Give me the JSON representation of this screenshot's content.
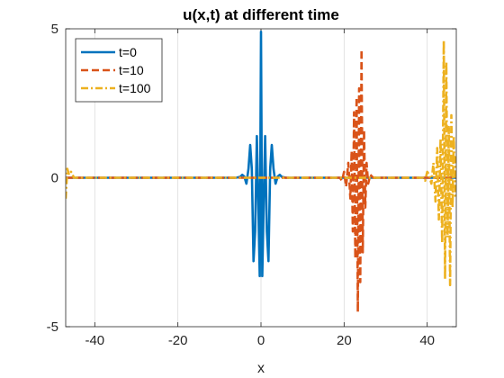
{
  "chart_data": {
    "type": "line",
    "title": "u(x,t) at different time",
    "xlabel": "x",
    "ylabel": "",
    "xlim": [
      -47,
      47
    ],
    "ylim": [
      -5,
      5
    ],
    "xticks": [
      -40,
      -20,
      0,
      20,
      40
    ],
    "xtick_labels": [
      "-40",
      "-20",
      "0",
      "20",
      "40"
    ],
    "yticks": [
      -5,
      0,
      5
    ],
    "ytick_labels": [
      "-5",
      "0",
      "5"
    ],
    "grid": "vertical-x",
    "legend_position": "top-left",
    "series": [
      {
        "name": "t=0",
        "color": "#0072BD",
        "style": "solid",
        "points": [
          [
            -47,
            0
          ],
          [
            -6,
            0
          ],
          [
            -5,
            0.03
          ],
          [
            -4.5,
            0.1
          ],
          [
            -4,
            0.04
          ],
          [
            -3.5,
            -0.2
          ],
          [
            -3,
            0.3
          ],
          [
            -2.6,
            1.1
          ],
          [
            -2.2,
            0.3
          ],
          [
            -1.8,
            -2.8
          ],
          [
            -1.4,
            -1.8
          ],
          [
            -1.0,
            1.4
          ],
          [
            -0.6,
            -1.2
          ],
          [
            -0.3,
            -3.3
          ],
          [
            0,
            4.9
          ],
          [
            0.3,
            -3.3
          ],
          [
            0.6,
            -1.2
          ],
          [
            1.0,
            1.4
          ],
          [
            1.4,
            -1.8
          ],
          [
            1.8,
            -2.8
          ],
          [
            2.2,
            0.3
          ],
          [
            2.6,
            1.1
          ],
          [
            3,
            0.3
          ],
          [
            3.5,
            -0.2
          ],
          [
            4,
            0.04
          ],
          [
            4.5,
            0.1
          ],
          [
            5,
            0.03
          ],
          [
            6,
            0
          ],
          [
            47,
            0
          ]
        ]
      },
      {
        "name": "t=10",
        "color": "#D95319",
        "style": "dashed",
        "points": [
          [
            -47,
            0
          ],
          [
            19,
            0
          ],
          [
            19.5,
            -0.1
          ],
          [
            20,
            0.2
          ],
          [
            20.5,
            -0.3
          ],
          [
            21,
            0.5
          ],
          [
            21.5,
            -0.7
          ],
          [
            21.8,
            0.9
          ],
          [
            22.1,
            -1.8
          ],
          [
            22.4,
            2.2
          ],
          [
            22.7,
            -2.7
          ],
          [
            23.0,
            2.7
          ],
          [
            23.3,
            -4.5
          ],
          [
            23.6,
            3.0
          ],
          [
            23.9,
            -3.5
          ],
          [
            24.2,
            4.3
          ],
          [
            24.5,
            -2.5
          ],
          [
            24.8,
            1.6
          ],
          [
            25.1,
            -1.0
          ],
          [
            25.4,
            0.5
          ],
          [
            25.8,
            -0.2
          ],
          [
            26.3,
            0.1
          ],
          [
            27,
            0
          ],
          [
            47,
            0
          ]
        ]
      },
      {
        "name": "t=100",
        "color": "#EDB120",
        "style": "dashdot",
        "points": [
          [
            -47,
            -0.7
          ],
          [
            -46.6,
            0.3
          ],
          [
            -46.2,
            0.1
          ],
          [
            -45.7,
            0.2
          ],
          [
            -45,
            0
          ],
          [
            39,
            0
          ],
          [
            39.5,
            -0.1
          ],
          [
            40,
            0.2
          ],
          [
            40.5,
            0.1
          ],
          [
            41,
            -0.2
          ],
          [
            41.5,
            0.5
          ],
          [
            42,
            -0.8
          ],
          [
            42.4,
            1.0
          ],
          [
            42.8,
            -1.4
          ],
          [
            43.2,
            1.3
          ],
          [
            43.6,
            -2.2
          ],
          [
            44,
            4.6
          ],
          [
            44.3,
            -3.4
          ],
          [
            44.6,
            3.9
          ],
          [
            44.9,
            -2.0
          ],
          [
            45.2,
            1.7
          ],
          [
            45.5,
            -3.6
          ],
          [
            45.8,
            2.1
          ],
          [
            46.1,
            -1.0
          ],
          [
            46.4,
            1.4
          ],
          [
            46.7,
            -0.6
          ],
          [
            47,
            0.8
          ]
        ]
      }
    ]
  }
}
